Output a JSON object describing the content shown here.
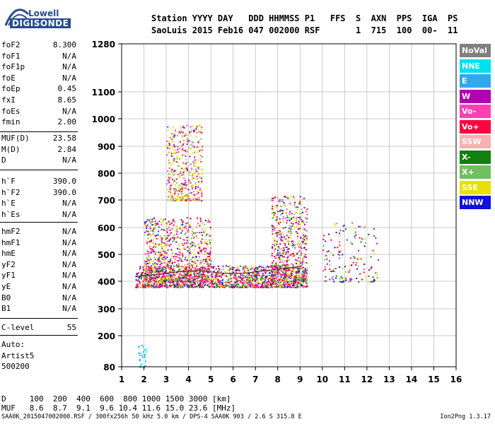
{
  "logo": {
    "line1": "Lowell",
    "line2": "DIGISONDE"
  },
  "header": {
    "row1": "Station YYYY DAY   DDD HHMMSS P1   FFS  S  AXN  PPS  IGA  PS",
    "row2": "SaoLuis 2015 Feb16 047 002000 RSF       1  715  100  00-  11"
  },
  "params_top": [
    {
      "name": "foF2",
      "value": "8.300"
    },
    {
      "name": "foF1",
      "value": "N/A"
    },
    {
      "name": "foF1p",
      "value": "N/A"
    },
    {
      "name": "foE",
      "value": "N/A"
    },
    {
      "name": "foEp",
      "value": "0.45"
    },
    {
      "name": "fxI",
      "value": "8.65"
    },
    {
      "name": "foEs",
      "value": "N/A"
    },
    {
      "name": "fmin",
      "value": "2.00"
    }
  ],
  "params_muf": [
    {
      "name": "MUF(D)",
      "value": "23.58"
    },
    {
      "name": "M(D)",
      "value": "2.84"
    },
    {
      "name": "D",
      "value": "N/A"
    }
  ],
  "params_h": [
    {
      "name": "h`F",
      "value": "390.0"
    },
    {
      "name": "h`F2",
      "value": "390.0"
    },
    {
      "name": "h`E",
      "value": "N/A"
    },
    {
      "name": "h`Es",
      "value": "N/A"
    }
  ],
  "params_hm": [
    {
      "name": "hmF2",
      "value": "N/A"
    },
    {
      "name": "hmF1",
      "value": "N/A"
    },
    {
      "name": "hmE",
      "value": "N/A"
    },
    {
      "name": "yF2",
      "value": "N/A"
    },
    {
      "name": "yF1",
      "value": "N/A"
    },
    {
      "name": "yE",
      "value": "N/A"
    },
    {
      "name": "B0",
      "value": "N/A"
    },
    {
      "name": "B1",
      "value": "N/A"
    }
  ],
  "clevel": {
    "name": "C-level",
    "value": "55"
  },
  "auto": {
    "line1": "Auto:",
    "line2": "Artist5",
    "line3": "500200"
  },
  "legend": [
    {
      "label": "NoVal",
      "bg": "#808080",
      "fg": "#ffffff"
    },
    {
      "label": "NNE",
      "bg": "#00e0f0",
      "fg": "#ffffff"
    },
    {
      "label": "E",
      "bg": "#30a8f0",
      "fg": "#ffffff"
    },
    {
      "label": "W",
      "bg": "#b000b0",
      "fg": "#ffffff"
    },
    {
      "label": "Vo-",
      "bg": "#ff40b0",
      "fg": "#ffffff"
    },
    {
      "label": "Vo+",
      "bg": "#ff0040",
      "fg": "#ffffff"
    },
    {
      "label": "SSW",
      "bg": "#f8b0b0",
      "fg": "#ffffff"
    },
    {
      "label": "X-",
      "bg": "#108010",
      "fg": "#ffffff"
    },
    {
      "label": "X+",
      "bg": "#70c060",
      "fg": "#ffffff"
    },
    {
      "label": "SSE",
      "bg": "#e8e000",
      "fg": "#ffffff"
    },
    {
      "label": "NNW",
      "bg": "#1010e0",
      "fg": "#ffffff"
    }
  ],
  "footer": {
    "d_row": "D     100  200  400  600  800 1000 1500 3000 [km]",
    "muf_row": "MUF   8.6  8.7  9.1  9.6 10.4 11.6 15.0 23.6 [MHz]",
    "file_line": "SAA0K_2015047002000.RSF / 300fx256h 50 kHz 5.0 km / DPS-4 SAA0K 903 / 2.6 S 315.8 E",
    "version": "Ion2Png 1.3.17"
  },
  "chart_data": {
    "type": "scatter",
    "title": "",
    "xlabel": "",
    "ylabel": "",
    "xlim": [
      1,
      16
    ],
    "ylim": [
      80,
      1280
    ],
    "x_ticks": [
      1,
      2,
      3,
      4,
      5,
      6,
      7,
      8,
      9,
      10,
      11,
      12,
      13,
      14,
      15,
      16
    ],
    "y_ticks": [
      80,
      200,
      300,
      400,
      500,
      600,
      700,
      800,
      900,
      1000,
      1100,
      1280
    ],
    "y_scale": "group-delay (non-linear, stretched near 400 km)",
    "grid": true,
    "clusters": [
      {
        "name": "F-layer base trace",
        "x": [
          1.6,
          9.3
        ],
        "y": [
          380,
          460
        ]
      },
      {
        "name": "F-layer spread 2-5 MHz",
        "x": [
          2.0,
          5.0
        ],
        "y": [
          400,
          640
        ]
      },
      {
        "name": "F-layer high echoes 3-4.5 MHz",
        "x": [
          3.0,
          4.6
        ],
        "y": [
          700,
          980
        ]
      },
      {
        "name": "F-layer spread 7.7-9.3 MHz",
        "x": [
          7.7,
          9.3
        ],
        "y": [
          400,
          720
        ]
      },
      {
        "name": "Oblique echoes 10-12.5 MHz",
        "x": [
          10.0,
          12.5
        ],
        "y": [
          400,
          620
        ]
      },
      {
        "name": "Low echoes near 2 MHz",
        "x": [
          1.7,
          2.1
        ],
        "y": [
          80,
          170
        ]
      }
    ],
    "trace_curve": {
      "x": [
        1.8,
        2.5,
        3.5,
        4.5,
        5.5,
        6.5,
        7.5,
        8.0,
        8.5,
        9.0
      ],
      "y": [
        420,
        425,
        435,
        440,
        430,
        430,
        440,
        445,
        450,
        455
      ]
    }
  }
}
